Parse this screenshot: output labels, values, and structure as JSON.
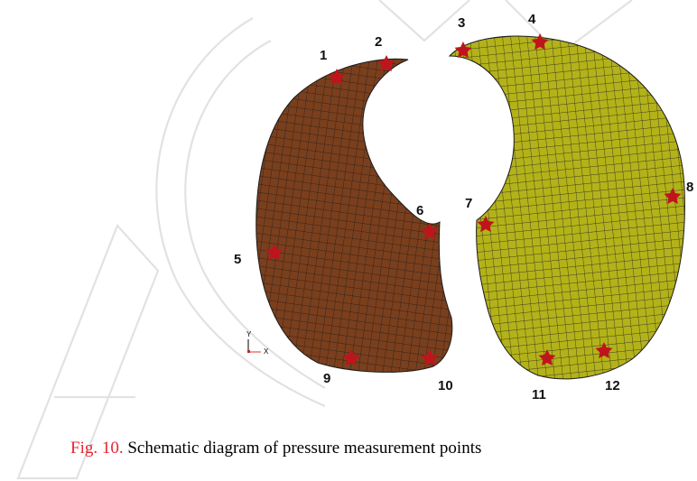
{
  "figure": {
    "points": [
      {
        "id": "point-1",
        "label": "1"
      },
      {
        "id": "point-2",
        "label": "2"
      },
      {
        "id": "point-3",
        "label": "3"
      },
      {
        "id": "point-4",
        "label": "4"
      },
      {
        "id": "point-5",
        "label": "5"
      },
      {
        "id": "point-6",
        "label": "6"
      },
      {
        "id": "point-7",
        "label": "7"
      },
      {
        "id": "point-8",
        "label": "8"
      },
      {
        "id": "point-9",
        "label": "9"
      },
      {
        "id": "point-10",
        "label": "10"
      },
      {
        "id": "point-11",
        "label": "11"
      },
      {
        "id": "point-12",
        "label": "12"
      }
    ],
    "axis_triad": {
      "y": "Y",
      "x": "X"
    },
    "colors": {
      "left_lung": "#7a3f1d",
      "right_lung": "#b3b21a",
      "mesh_line": "#1a1a1a",
      "marker": "#c0141c",
      "watermark": "#e5e5e5",
      "caption_label": "#e8232f"
    }
  },
  "caption": {
    "label": "Fig. 10.",
    "text": " Schematic diagram of pressure measurement points"
  }
}
